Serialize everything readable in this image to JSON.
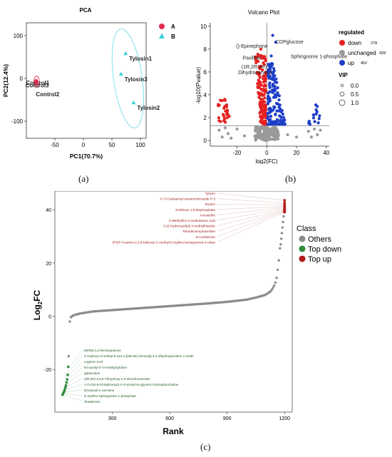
{
  "chart_data": [
    {
      "type": "scatter",
      "title": "PCA",
      "xlabel": "PC1(70.7%)",
      "ylabel": "PC2(12.4%)",
      "xlim": [
        -100,
        110
      ],
      "ylim": [
        -140,
        130
      ],
      "xticks": [
        -50,
        0,
        50,
        100
      ],
      "yticks": [
        -100,
        0,
        100
      ],
      "grid": false,
      "legend_position": "right",
      "series": [
        {
          "name": "A",
          "color": "#e02b4e",
          "marker": "circle",
          "points": [
            {
              "x": -82,
              "y": -8,
              "label": "Control1"
            },
            {
              "x": -83,
              "y": -6,
              "label": "Control3"
            },
            {
              "x": -82,
              "y": -12,
              "label": "Control2"
            }
          ]
        },
        {
          "name": "B",
          "color": "#38d0e0",
          "marker": "triangle",
          "points": [
            {
              "x": 74,
              "y": 58,
              "label": "Tylosin1"
            },
            {
              "x": 66,
              "y": 10,
              "label": "Tylosin3"
            },
            {
              "x": 88,
              "y": -57,
              "label": "Tylosin2"
            }
          ]
        }
      ],
      "caption": "(a)"
    },
    {
      "type": "scatter",
      "title": "Volcano Plot",
      "xlabel": "log2(FC)",
      "ylabel": "-log10(Pvalue)",
      "xlim": [
        -38,
        42
      ],
      "ylim": [
        -0.5,
        10.3
      ],
      "xticks": [
        -20,
        0,
        20,
        40
      ],
      "yticks": [
        0,
        2,
        4,
        6,
        8,
        10
      ],
      "grid": false,
      "legend_title": "regulated",
      "legend_items": [
        {
          "label": "down",
          "count": "278",
          "color": "#e62020"
        },
        {
          "label": "unchanged",
          "count": "428",
          "color": "#9a9a9a"
        },
        {
          "label": "up",
          "count": "452",
          "color": "#1f3fc8"
        }
      ],
      "size_legend_title": "VIP",
      "size_legend_values": [
        "0.0",
        "0.5",
        "1.0"
      ],
      "annotations": [
        {
          "text": "CDPglucose",
          "x": 6,
          "y": 8.5
        },
        {
          "text": "()-Epinephrine",
          "x": -10,
          "y": 8.1
        },
        {
          "text": "Paxilline",
          "x": -10,
          "y": 7.1
        },
        {
          "text": "Sphingosine 1-phosphate",
          "x": 16,
          "y": 7.2
        },
        {
          "text": "(1R,2R,4R)-",
          "x": -8,
          "y": 6.3
        },
        {
          "text": "Dihydrocarveol",
          "x": -8,
          "y": 5.8
        }
      ],
      "caption": "(b)"
    },
    {
      "type": "scatter",
      "xlabel": "Rank",
      "ylabel": "Log2FC",
      "xlim": [
        0,
        1240
      ],
      "ylim": [
        -36,
        47
      ],
      "xticks": [
        300,
        600,
        900,
        1200
      ],
      "yticks": [
        -20,
        0,
        20,
        40
      ],
      "grid": false,
      "legend_title": "Class",
      "legend_position": "right",
      "legend_items": [
        {
          "label": "Others",
          "color": "#8c8c8c"
        },
        {
          "label": "Top down",
          "color": "#2e8b3a"
        },
        {
          "label": "Top up",
          "color": "#b21a1a"
        }
      ],
      "rank_curve": [
        [
          40,
          -29.5
        ],
        [
          50,
          -28
        ],
        [
          58,
          -26
        ],
        [
          66,
          -23
        ],
        [
          70,
          -19
        ],
        [
          72,
          -15
        ],
        [
          74,
          -9
        ],
        [
          76,
          -4
        ],
        [
          78,
          -2
        ],
        [
          82,
          -0.5
        ],
        [
          95,
          0.3
        ],
        [
          130,
          1.0
        ],
        [
          200,
          1.8
        ],
        [
          300,
          2.3
        ],
        [
          400,
          2.8
        ],
        [
          500,
          3.3
        ],
        [
          600,
          3.8
        ],
        [
          700,
          4.3
        ],
        [
          800,
          4.8
        ],
        [
          900,
          5.4
        ],
        [
          1000,
          6.2
        ],
        [
          1050,
          7.0
        ],
        [
          1100,
          8.0
        ],
        [
          1130,
          9.5
        ],
        [
          1150,
          12.0
        ],
        [
          1160,
          15.0
        ],
        [
          1165,
          18.0
        ],
        [
          1170,
          21.0
        ],
        [
          1174,
          24.0
        ],
        [
          1178,
          27.0
        ]
      ],
      "top_up_labels": [
        "Tylosin",
        "4''-O-Carbamoyl amaromicinoside P-3",
        "Dactim",
        "D-Ribose 1,5-bisphosphate",
        "Amoxicillin",
        "4-Methylthio-2-oxobutanoic acid",
        "5-(2-Hydroxyethyl)-4-methylthiazole",
        "Tetradecanoylcarnitine",
        "D-Lombricine",
        "dTDP-3-amino-2,3,6-trideoxy-C-methyl-D-erythro-hexopyranos-4-ulose"
      ],
      "top_up_values": [
        43.5,
        42.5,
        41.8,
        41.2,
        40.8,
        40.4,
        40.0,
        39.7,
        39.4,
        39.1
      ],
      "top_down_labels": [
        "Methyl-1,4-benzoquinone",
        "4-Hydroxy-3-methyl-5-oxo-4-[(2E,6E)-farnesyl]-3,4-dihydroquinoline 1-oxide",
        "Lugenic Acid",
        "N4-acetyl-2'-O-methylcytidine",
        "gabaculine",
        "(4R,5S)-4,5,6-Trihydroxy-2,3-dioxohexanoate",
        "1-O-(cis-9-Octadecenyl)-2-O-acetyl-sn-glycero-3-phosphocholine",
        "Decanoyl-L-carnitine",
        "D-erythro-Sphingosine-1-phosphate",
        "Teasterone"
      ],
      "top_down_values": [
        -22.0,
        -23.0,
        -24.0,
        -25.0,
        -26.0,
        -27.0,
        -27.8,
        -28.4,
        -29.0,
        -29.5
      ],
      "caption": "(c)"
    }
  ]
}
